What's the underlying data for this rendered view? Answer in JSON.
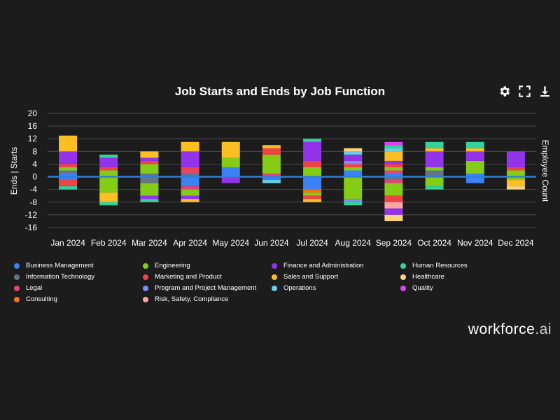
{
  "header": {
    "title": "Job Starts and Ends by Job Function",
    "settings_icon": "gear-icon",
    "fullscreen_icon": "expand-icon",
    "download_icon": "download-icon"
  },
  "brand": {
    "name": "workforce",
    "suffix": ".ai"
  },
  "colors": {
    "background": "#1c1c1c",
    "grid": "#4a4a4a",
    "zero_line": "#2f7fd8"
  },
  "chart_data": {
    "type": "bar",
    "stacked": true,
    "title": "Job Starts and Ends by Job Function",
    "ylabel": "Ends | Starts",
    "y2label": "Employee Count",
    "ylim": [
      -16,
      20
    ],
    "yticks": [
      20,
      16,
      12,
      8,
      4,
      0,
      -4,
      -8,
      -12,
      -16
    ],
    "grid": true,
    "legend_position": "bottom",
    "categories": [
      "Jan 2024",
      "Feb 2024",
      "Mar 2024",
      "Apr 2024",
      "May 2024",
      "Jun 2024",
      "Jul 2024",
      "Aug 2024",
      "Sep 2024",
      "Oct 2024",
      "Nov 2024",
      "Dec 2024"
    ],
    "series": [
      {
        "name": "Business Management",
        "color": "#3b82f6",
        "values": [
          [
            1,
            -1
          ],
          [
            0,
            0
          ],
          [
            0,
            0
          ],
          [
            0,
            -3
          ],
          [
            3,
            0
          ],
          [
            0,
            -1
          ],
          [
            0,
            -4
          ],
          [
            2,
            0
          ],
          [
            1,
            0
          ],
          [
            0,
            0
          ],
          [
            1,
            -2
          ],
          [
            0,
            0
          ]
        ]
      },
      {
        "name": "Information Technology",
        "color": "#64748b",
        "values": [
          [
            1,
            0
          ],
          [
            0,
            0
          ],
          [
            1,
            -2
          ],
          [
            1,
            0
          ],
          [
            0,
            0
          ],
          [
            0,
            0
          ],
          [
            0,
            0
          ],
          [
            0,
            0
          ],
          [
            0,
            -1
          ],
          [
            2,
            0
          ],
          [
            0,
            0
          ],
          [
            0,
            0
          ]
        ]
      },
      {
        "name": "Legal",
        "color": "#e0457b",
        "values": [
          [
            0,
            0
          ],
          [
            0,
            0
          ],
          [
            0,
            0
          ],
          [
            1,
            -1
          ],
          [
            0,
            0
          ],
          [
            1,
            0
          ],
          [
            0,
            0
          ],
          [
            0,
            0
          ],
          [
            1,
            -1
          ],
          [
            0,
            0
          ],
          [
            0,
            0
          ],
          [
            0,
            0
          ]
        ]
      },
      {
        "name": "Consulting",
        "color": "#f97316",
        "values": [
          [
            0,
            0
          ],
          [
            0,
            0
          ],
          [
            0,
            0
          ],
          [
            0,
            0
          ],
          [
            0,
            0
          ],
          [
            0,
            0
          ],
          [
            0,
            -1
          ],
          [
            0,
            0
          ],
          [
            0,
            0
          ],
          [
            0,
            0
          ],
          [
            0,
            0
          ],
          [
            0,
            0
          ]
        ]
      },
      {
        "name": "Engineering",
        "color": "#84cc16",
        "values": [
          [
            1,
            0
          ],
          [
            2,
            -5
          ],
          [
            3,
            -4
          ],
          [
            0,
            -2
          ],
          [
            3,
            0
          ],
          [
            6,
            0
          ],
          [
            3,
            -1
          ],
          [
            1,
            -7
          ],
          [
            1,
            -4
          ],
          [
            1,
            -3
          ],
          [
            4,
            0
          ],
          [
            2,
            -1
          ]
        ]
      },
      {
        "name": "Marketing and Product",
        "color": "#ef4444",
        "values": [
          [
            1,
            -2
          ],
          [
            1,
            0
          ],
          [
            1,
            0
          ],
          [
            1,
            0
          ],
          [
            0,
            0
          ],
          [
            2,
            0
          ],
          [
            2,
            -1
          ],
          [
            1,
            0
          ],
          [
            1,
            -2
          ],
          [
            0,
            0
          ],
          [
            0,
            0
          ],
          [
            1,
            0
          ]
        ]
      },
      {
        "name": "Program and Project Management",
        "color": "#818cf8",
        "values": [
          [
            0,
            0
          ],
          [
            0,
            0
          ],
          [
            0,
            0
          ],
          [
            0,
            0
          ],
          [
            0,
            0
          ],
          [
            0,
            0
          ],
          [
            0,
            0
          ],
          [
            1,
            -1
          ],
          [
            0,
            0
          ],
          [
            0,
            0
          ],
          [
            0,
            0
          ],
          [
            0,
            0
          ]
        ]
      },
      {
        "name": "Risk, Safety, Compliance",
        "color": "#fca5a5",
        "values": [
          [
            0,
            0
          ],
          [
            0,
            0
          ],
          [
            0,
            0
          ],
          [
            0,
            0
          ],
          [
            0,
            0
          ],
          [
            0,
            0
          ],
          [
            0,
            0
          ],
          [
            0,
            0
          ],
          [
            0,
            -2
          ],
          [
            0,
            0
          ],
          [
            0,
            0
          ],
          [
            0,
            0
          ]
        ]
      },
      {
        "name": "Finance and Administration",
        "color": "#9333ea",
        "values": [
          [
            4,
            0
          ],
          [
            3,
            0
          ],
          [
            1,
            -1
          ],
          [
            5,
            -1
          ],
          [
            0,
            -2
          ],
          [
            0,
            0
          ],
          [
            6,
            0
          ],
          [
            2,
            0
          ],
          [
            1,
            -2
          ],
          [
            5,
            0
          ],
          [
            3,
            0
          ],
          [
            5,
            0
          ]
        ]
      },
      {
        "name": "Sales and Support",
        "color": "#fbbf24",
        "values": [
          [
            5,
            0
          ],
          [
            0,
            -3
          ],
          [
            2,
            0
          ],
          [
            3,
            -1
          ],
          [
            5,
            0
          ],
          [
            1,
            0
          ],
          [
            0,
            -1
          ],
          [
            0,
            0
          ],
          [
            3,
            0
          ],
          [
            1,
            0
          ],
          [
            1,
            0
          ],
          [
            0,
            -2
          ]
        ]
      },
      {
        "name": "Operations",
        "color": "#67cfe8",
        "values": [
          [
            0,
            0
          ],
          [
            0,
            0
          ],
          [
            0,
            0
          ],
          [
            0,
            0
          ],
          [
            0,
            0
          ],
          [
            0,
            -1
          ],
          [
            0,
            0
          ],
          [
            1,
            0
          ],
          [
            1,
            0
          ],
          [
            0,
            0
          ],
          [
            0,
            0
          ],
          [
            0,
            0
          ]
        ]
      },
      {
        "name": "Human Resources",
        "color": "#34d399",
        "values": [
          [
            0,
            -1
          ],
          [
            1,
            -1
          ],
          [
            0,
            -1
          ],
          [
            0,
            0
          ],
          [
            0,
            0
          ],
          [
            0,
            0
          ],
          [
            1,
            0
          ],
          [
            0,
            -1
          ],
          [
            1,
            0
          ],
          [
            2,
            -1
          ],
          [
            2,
            0
          ],
          [
            0,
            0
          ]
        ]
      },
      {
        "name": "Healthcare",
        "color": "#fcd581",
        "values": [
          [
            0,
            0
          ],
          [
            0,
            0
          ],
          [
            0,
            0
          ],
          [
            0,
            0
          ],
          [
            0,
            0
          ],
          [
            0,
            0
          ],
          [
            0,
            0
          ],
          [
            1,
            0
          ],
          [
            0,
            -2
          ],
          [
            0,
            0
          ],
          [
            0,
            0
          ],
          [
            0,
            -1
          ]
        ]
      },
      {
        "name": "Quality",
        "color": "#d946ef",
        "values": [
          [
            0,
            0
          ],
          [
            0,
            0
          ],
          [
            0,
            0
          ],
          [
            0,
            0
          ],
          [
            0,
            0
          ],
          [
            0,
            0
          ],
          [
            0,
            0
          ],
          [
            0,
            0
          ],
          [
            1,
            0
          ],
          [
            0,
            0
          ],
          [
            0,
            0
          ],
          [
            0,
            0
          ]
        ]
      }
    ]
  }
}
